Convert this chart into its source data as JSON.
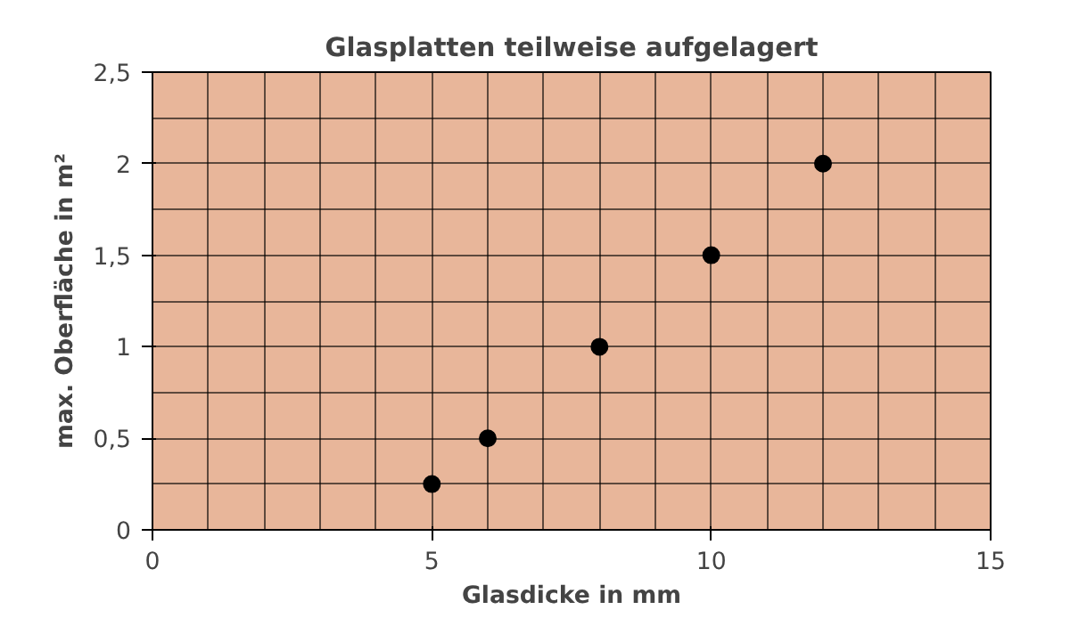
{
  "chart_data": {
    "type": "scatter",
    "title": "Glasplatten teilweise aufgelagert",
    "xlabel": "Glasdicke in mm",
    "ylabel": "max. Oberfläche in m²",
    "x": [
      5,
      6,
      8,
      10,
      12
    ],
    "series": [
      {
        "color": "#000000",
        "values": [
          0.25,
          0.5,
          1,
          1.5,
          2
        ]
      }
    ],
    "xlim": [
      0,
      15
    ],
    "xticks": [
      0,
      5,
      10,
      15
    ],
    "ylim": [
      0,
      2.5
    ],
    "yticks": [
      0,
      {
        "value": 0.5,
        "label": "0,5"
      },
      1,
      {
        "value": 1.5,
        "label": "1,5"
      },
      2,
      {
        "value": 2.5,
        "label": "2,5"
      }
    ],
    "grid": true,
    "marker": "circle"
  }
}
